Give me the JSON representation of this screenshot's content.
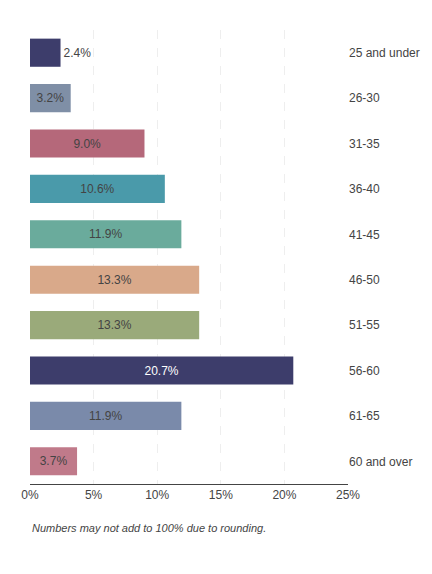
{
  "chart_data": {
    "type": "bar",
    "orientation": "horizontal",
    "categories": [
      "25 and under",
      "26-30",
      "31-35",
      "36-40",
      "41-45",
      "46-50",
      "51-55",
      "56-60",
      "61-65",
      "60 and over"
    ],
    "values": [
      2.4,
      3.2,
      9.0,
      10.6,
      11.9,
      13.3,
      13.3,
      20.7,
      11.9,
      3.7
    ],
    "value_labels": [
      "2.4%",
      "3.2%",
      "9.0%",
      "10.6%",
      "11.9%",
      "13.3%",
      "13.3%",
      "20.7%",
      "11.9%",
      "3.7%"
    ],
    "data_labels": true,
    "colors": [
      "#3d3d6b",
      "#7f8fa6",
      "#b5687a",
      "#4a9aaa",
      "#6aab9c",
      "#d9a98a",
      "#9aaa7a",
      "#3d3d6b",
      "#7a8aaa",
      "#c07a8a"
    ],
    "xlim": [
      0,
      25
    ],
    "xticks": [
      {
        "value": 0,
        "label": "0%"
      },
      {
        "value": 5,
        "label": "5%"
      },
      {
        "value": 10,
        "label": "10%"
      },
      {
        "value": 15,
        "label": "15%"
      },
      {
        "value": 20,
        "label": "20%"
      },
      {
        "value": 25,
        "label": "25%"
      }
    ],
    "grid": true,
    "annotations": [
      "Numbers may not add to 100% due to rounding."
    ]
  }
}
